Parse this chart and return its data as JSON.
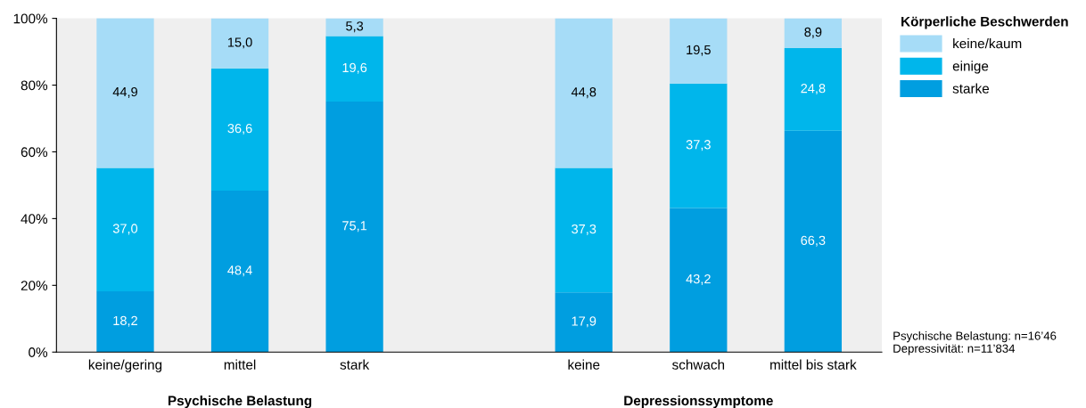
{
  "chart_data": {
    "type": "bar",
    "stacked": true,
    "categories": [
      "keine/gering",
      "mittel",
      "stark",
      null,
      "keine",
      "schwach",
      "mittel bis stark"
    ],
    "series": [
      {
        "name": "starke",
        "color": "#009ee0",
        "values": [
          18.2,
          48.4,
          75.1,
          null,
          17.9,
          43.2,
          66.3
        ],
        "value_labels": [
          "18,2",
          "48,4",
          "75,1",
          null,
          "17,9",
          "43,2",
          "66,3"
        ]
      },
      {
        "name": "einige",
        "color": "#00b6eb",
        "values": [
          37.0,
          36.6,
          19.6,
          null,
          37.3,
          37.3,
          24.8
        ],
        "value_labels": [
          "37,0",
          "36,6",
          "19,6",
          null,
          "37,3",
          "37,3",
          "24,8"
        ]
      },
      {
        "name": "keine/kaum",
        "color": "#a6dcf7",
        "values": [
          44.9,
          15.0,
          5.3,
          null,
          44.8,
          19.5,
          8.9
        ],
        "value_labels": [
          "44,9",
          "15,0",
          "5,3",
          null,
          "44,8",
          "19,5",
          "8,9"
        ]
      }
    ],
    "ylim": [
      0,
      100
    ],
    "yticks": [
      {
        "value": 0,
        "label": "0%"
      },
      {
        "value": 20,
        "label": "20%"
      },
      {
        "value": 40,
        "label": "40%"
      },
      {
        "value": 60,
        "label": "60%"
      },
      {
        "value": 80,
        "label": "80%"
      },
      {
        "value": 100,
        "label": "100%"
      }
    ],
    "legend_title": "Körperliche Beschwerden",
    "legend": "top right",
    "grid": false,
    "annotations": [
      "Psychische Belastung",
      "Depressionssymptome",
      "Psychische Belastung: n=16’46\nDepressivität: n=11’834"
    ]
  }
}
